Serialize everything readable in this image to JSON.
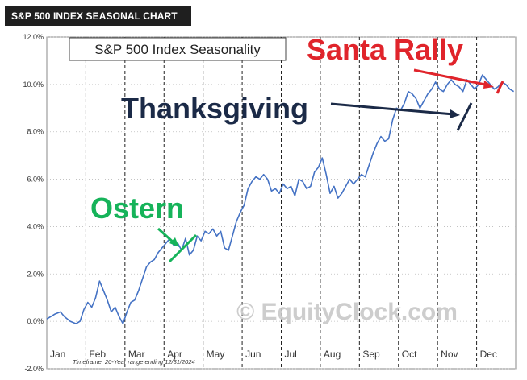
{
  "header": {
    "title": "S&P 500 INDEX SEASONAL CHART"
  },
  "chart_data": {
    "type": "line",
    "title": "S&P 500 Index Seasonality",
    "footnote": "Timeframe: 20-Year range ending 12/31/2024",
    "watermark": "© EquityClock.com",
    "xlabel": "",
    "ylabel": "",
    "ylim": [
      -2.0,
      12.0
    ],
    "y_ticks": [
      "12.0%",
      "10.0%",
      "8.0%",
      "6.0%",
      "4.0%",
      "2.0%",
      "0.0%",
      "-2.0%"
    ],
    "x_ticks": [
      "Jan",
      "Feb",
      "Mar",
      "Apr",
      "May",
      "Jun",
      "Jul",
      "Aug",
      "Sep",
      "Oct",
      "Nov",
      "Dec"
    ],
    "grid": {
      "vertical_dashed_month_lines": true,
      "horizontal_dotted": true
    },
    "series": [
      {
        "color": "#4472c4",
        "x": [
          0.0,
          0.1,
          0.2,
          0.35,
          0.45,
          0.6,
          0.75,
          0.85,
          0.95,
          1.05,
          1.15,
          1.25,
          1.35,
          1.45,
          1.55,
          1.65,
          1.75,
          1.85,
          1.95,
          2.05,
          2.15,
          2.25,
          2.35,
          2.45,
          2.55,
          2.65,
          2.75,
          2.85,
          2.95,
          3.05,
          3.15,
          3.25,
          3.35,
          3.45,
          3.55,
          3.65,
          3.75,
          3.85,
          3.95,
          4.05,
          4.15,
          4.25,
          4.35,
          4.45,
          4.55,
          4.65,
          4.75,
          4.85,
          4.95,
          5.05,
          5.15,
          5.25,
          5.35,
          5.45,
          5.55,
          5.65,
          5.75,
          5.85,
          5.95,
          6.05,
          6.15,
          6.25,
          6.35,
          6.45,
          6.55,
          6.65,
          6.75,
          6.85,
          6.95,
          7.05,
          7.15,
          7.25,
          7.35,
          7.45,
          7.55,
          7.65,
          7.75,
          7.85,
          7.95,
          8.05,
          8.15,
          8.25,
          8.35,
          8.45,
          8.55,
          8.65,
          8.75,
          8.85,
          8.95,
          9.05,
          9.15,
          9.25,
          9.35,
          9.45,
          9.55,
          9.65,
          9.75,
          9.85,
          9.95,
          10.05,
          10.15,
          10.25,
          10.35,
          10.45,
          10.55,
          10.65,
          10.75,
          10.85,
          10.95,
          11.05,
          11.15,
          11.25,
          11.35,
          11.45,
          11.55,
          11.65,
          11.75,
          11.85,
          11.95
        ],
        "values": [
          0.1,
          0.2,
          0.3,
          0.4,
          0.2,
          0.0,
          -0.1,
          0.0,
          0.5,
          0.8,
          0.6,
          1.0,
          1.7,
          1.3,
          0.9,
          0.4,
          0.6,
          0.2,
          -0.1,
          0.4,
          0.8,
          0.9,
          1.3,
          1.8,
          2.3,
          2.5,
          2.6,
          2.9,
          3.1,
          3.3,
          3.5,
          3.2,
          3.3,
          3.0,
          3.5,
          2.8,
          3.0,
          3.6,
          3.4,
          3.8,
          3.7,
          3.9,
          3.6,
          3.8,
          3.1,
          3.0,
          3.6,
          4.2,
          4.6,
          4.9,
          5.6,
          5.9,
          6.1,
          6.0,
          6.2,
          6.0,
          5.5,
          5.6,
          5.4,
          5.8,
          5.6,
          5.7,
          5.3,
          6.0,
          5.9,
          5.6,
          5.7,
          6.3,
          6.5,
          6.9,
          6.2,
          5.4,
          5.7,
          5.2,
          5.4,
          5.7,
          6.0,
          5.8,
          6.0,
          6.2,
          6.1,
          6.6,
          7.1,
          7.5,
          7.8,
          7.6,
          7.7,
          8.5,
          9.0,
          8.9,
          9.2,
          9.7,
          9.6,
          9.4,
          9.0,
          9.3,
          9.6,
          9.8,
          10.1,
          9.8,
          9.7,
          10.0,
          10.2,
          10.0,
          9.9,
          9.7,
          10.2,
          10.0,
          9.8,
          10.0,
          10.4,
          10.2,
          10.0,
          9.8,
          9.9,
          10.1,
          10.0,
          9.8,
          9.7
        ]
      }
    ],
    "annotations": [
      {
        "text": "Santa Rally",
        "color": "#e0242b"
      },
      {
        "text": "Thanksgiving",
        "color": "#1b2a47"
      },
      {
        "text": "Ostern",
        "color": "#16b35a"
      }
    ]
  }
}
